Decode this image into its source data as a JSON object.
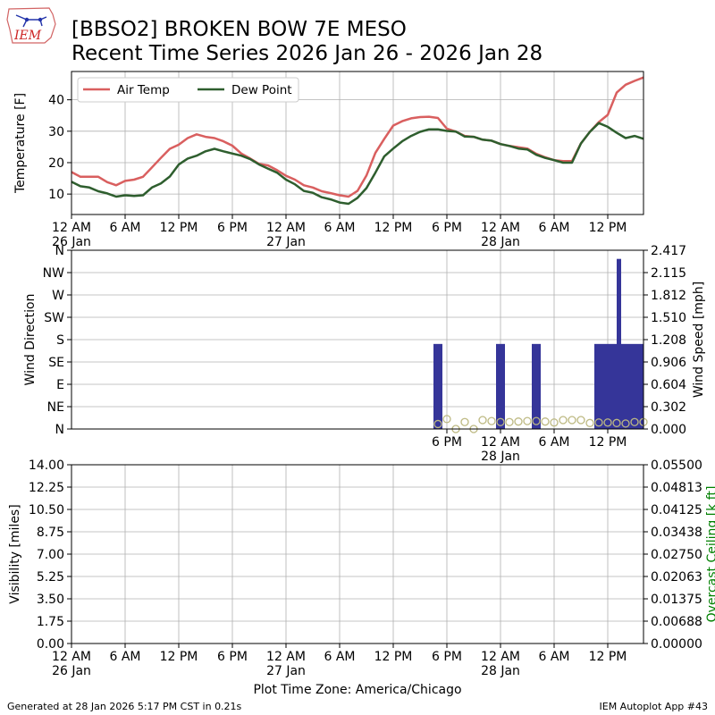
{
  "header": {
    "logo_text": "IEM",
    "title_line1": "[BBSO2] BROKEN BOW 7E MESO",
    "title_line2": "Recent Time Series 2026 Jan 26 - 2026 Jan 28"
  },
  "footer": {
    "generated": "Generated at 28 Jan 2026 5:17 PM CST in 0.21s",
    "app": "IEM Autoplot App #43"
  },
  "colors": {
    "air_temp": "#d95f5f",
    "dew_point": "#2e5e2e",
    "wind_speed_bars": "#353599",
    "wind_dir_points": "#bdb982",
    "ceiling_label": "#008000",
    "grid": "#b0b0b0"
  },
  "chart_data": [
    {
      "type": "line",
      "ylabel": "Temperature [F]",
      "ylim": [
        3.5,
        49
      ],
      "yticks": [
        10,
        20,
        30,
        40
      ],
      "xlim": [
        0,
        64
      ],
      "x_unit": "hours since 12 AM 26 Jan",
      "xticks": [
        {
          "x": 0,
          "label": "12 AM",
          "sub": "26 Jan"
        },
        {
          "x": 6,
          "label": "6 AM",
          "sub": ""
        },
        {
          "x": 12,
          "label": "12 PM",
          "sub": ""
        },
        {
          "x": 18,
          "label": "6 PM",
          "sub": ""
        },
        {
          "x": 24,
          "label": "12 AM",
          "sub": "27 Jan"
        },
        {
          "x": 30,
          "label": "6 AM",
          "sub": ""
        },
        {
          "x": 36,
          "label": "12 PM",
          "sub": ""
        },
        {
          "x": 42,
          "label": "6 PM",
          "sub": ""
        },
        {
          "x": 48,
          "label": "12 AM",
          "sub": "28 Jan"
        },
        {
          "x": 54,
          "label": "6 AM",
          "sub": ""
        },
        {
          "x": 60,
          "label": "12 PM",
          "sub": ""
        }
      ],
      "grid": true,
      "legend": "top-left",
      "series": [
        {
          "name": "Air Temp",
          "color": "#d95f5f",
          "points": [
            [
              0,
              17
            ],
            [
              1,
              15.5
            ],
            [
              2,
              15.5
            ],
            [
              3,
              15.5
            ],
            [
              4,
              13.8
            ],
            [
              5,
              12.8
            ],
            [
              6,
              14.2
            ],
            [
              7,
              14.6
            ],
            [
              8,
              15.5
            ],
            [
              9,
              18.5
            ],
            [
              10,
              21.5
            ],
            [
              11,
              24.4
            ],
            [
              12,
              25.7
            ],
            [
              13,
              27.8
            ],
            [
              14,
              29
            ],
            [
              15,
              28.2
            ],
            [
              16,
              27.8
            ],
            [
              17,
              26.8
            ],
            [
              18,
              25.4
            ],
            [
              19,
              22.9
            ],
            [
              20,
              21.3
            ],
            [
              21,
              19.6
            ],
            [
              22,
              19.1
            ],
            [
              23,
              17.6
            ],
            [
              24,
              15.8
            ],
            [
              25,
              14.6
            ],
            [
              26,
              12.8
            ],
            [
              27,
              12.1
            ],
            [
              28,
              10.9
            ],
            [
              29,
              10.3
            ],
            [
              30,
              9.6
            ],
            [
              31,
              9.2
            ],
            [
              32,
              11
            ],
            [
              33,
              15.9
            ],
            [
              34,
              23.1
            ],
            [
              35,
              27.6
            ],
            [
              36,
              31.8
            ],
            [
              37,
              33.2
            ],
            [
              38,
              34.1
            ],
            [
              39,
              34.5
            ],
            [
              40,
              34.6
            ],
            [
              41,
              34.2
            ],
            [
              42,
              30.8
            ],
            [
              43,
              29.9
            ],
            [
              44,
              28.5
            ],
            [
              45,
              28.2
            ],
            [
              46,
              27.3
            ],
            [
              47,
              27
            ],
            [
              48,
              25.9
            ],
            [
              49,
              25.3
            ],
            [
              50,
              24.9
            ],
            [
              51,
              24.5
            ],
            [
              52,
              22.8
            ],
            [
              53,
              21.7
            ],
            [
              54,
              20.8
            ],
            [
              55,
              20.5
            ],
            [
              56,
              20.5
            ],
            [
              57,
              26.1
            ],
            [
              58,
              29.8
            ],
            [
              59,
              32.9
            ],
            [
              60,
              35.2
            ],
            [
              61,
              42.3
            ],
            [
              62,
              44.8
            ],
            [
              63,
              46
            ],
            [
              64,
              47.1
            ]
          ]
        },
        {
          "name": "Dew Point",
          "color": "#2e5e2e",
          "points": [
            [
              0,
              13.9
            ],
            [
              1,
              12.5
            ],
            [
              2,
              12.1
            ],
            [
              3,
              10.9
            ],
            [
              4,
              10.2
            ],
            [
              5,
              9.2
            ],
            [
              6,
              9.6
            ],
            [
              7,
              9.4
            ],
            [
              8,
              9.6
            ],
            [
              9,
              12.1
            ],
            [
              10,
              13.4
            ],
            [
              11,
              15.6
            ],
            [
              12,
              19.4
            ],
            [
              13,
              21.3
            ],
            [
              14,
              22.2
            ],
            [
              15,
              23.6
            ],
            [
              16,
              24.4
            ],
            [
              17,
              23.6
            ],
            [
              18,
              22.9
            ],
            [
              19,
              22.2
            ],
            [
              20,
              21.1
            ],
            [
              21,
              19.4
            ],
            [
              22,
              18.1
            ],
            [
              23,
              16.8
            ],
            [
              24,
              14.6
            ],
            [
              25,
              13.1
            ],
            [
              26,
              11
            ],
            [
              27,
              10.4
            ],
            [
              28,
              9
            ],
            [
              29,
              8.3
            ],
            [
              30,
              7.3
            ],
            [
              31,
              6.9
            ],
            [
              32,
              8.8
            ],
            [
              33,
              11.9
            ],
            [
              34,
              16.8
            ],
            [
              35,
              22
            ],
            [
              36,
              24.5
            ],
            [
              37,
              26.8
            ],
            [
              38,
              28.5
            ],
            [
              39,
              29.8
            ],
            [
              40,
              30.6
            ],
            [
              41,
              30.6
            ],
            [
              42,
              30.1
            ],
            [
              43,
              29.9
            ],
            [
              44,
              28.3
            ],
            [
              45,
              28.2
            ],
            [
              46,
              27.3
            ],
            [
              47,
              27
            ],
            [
              48,
              25.9
            ],
            [
              49,
              25.3
            ],
            [
              50,
              24.5
            ],
            [
              51,
              24.2
            ],
            [
              52,
              22.5
            ],
            [
              53,
              21.5
            ],
            [
              54,
              20.8
            ],
            [
              55,
              20
            ],
            [
              56,
              20
            ],
            [
              57,
              26.1
            ],
            [
              58,
              29.8
            ],
            [
              59,
              32.6
            ],
            [
              60,
              31.4
            ],
            [
              61,
              29.5
            ],
            [
              62,
              27.8
            ],
            [
              63,
              28.5
            ],
            [
              64,
              27.6
            ]
          ]
        }
      ]
    },
    {
      "type": "bar",
      "ylabel_left": "Wind Direction",
      "ylabel_right": "Wind Speed [mph]",
      "dir_ticks": [
        "N",
        "NE",
        "E",
        "SE",
        "S",
        "SW",
        "W",
        "NW",
        "N"
      ],
      "speed_ticks": [
        "0.000",
        "0.302",
        "0.604",
        "0.906",
        "1.208",
        "1.510",
        "1.812",
        "2.115",
        "2.417"
      ],
      "speed_ylim": [
        0,
        2.417
      ],
      "dir_ylim": [
        0,
        360
      ],
      "xlim": [
        0,
        64
      ],
      "x_unit": "hours since 12 AM 26 Jan",
      "xticks": [
        {
          "x": 42,
          "label": "6 PM",
          "sub": ""
        },
        {
          "x": 48,
          "label": "12 AM",
          "sub": "28 Jan"
        },
        {
          "x": 54,
          "label": "6 AM",
          "sub": ""
        },
        {
          "x": 60,
          "label": "12 PM",
          "sub": ""
        }
      ],
      "grid": true,
      "wind_speed_bars": [
        {
          "x": 40.5,
          "width": 1,
          "value": 1.15
        },
        {
          "x": 47.5,
          "width": 1,
          "value": 1.15
        },
        {
          "x": 51.5,
          "width": 1,
          "value": 1.15
        },
        {
          "x": 58.5,
          "width": 2,
          "value": 1.15
        },
        {
          "x": 60.5,
          "width": 0.5,
          "value": 1.15
        },
        {
          "x": 61,
          "width": 0.5,
          "value": 2.3
        },
        {
          "x": 61.5,
          "width": 2.5,
          "value": 1.15
        }
      ],
      "wind_direction_points": [
        [
          41,
          10
        ],
        [
          42,
          20
        ],
        [
          43,
          0
        ],
        [
          44,
          14
        ],
        [
          45,
          0
        ],
        [
          46,
          18
        ],
        [
          47,
          16
        ],
        [
          48,
          14
        ],
        [
          49,
          14
        ],
        [
          50,
          15
        ],
        [
          51,
          16
        ],
        [
          52,
          16
        ],
        [
          53,
          15
        ],
        [
          54,
          13
        ],
        [
          55,
          18
        ],
        [
          56,
          18
        ],
        [
          57,
          18
        ],
        [
          58,
          12
        ],
        [
          59,
          13
        ],
        [
          60,
          13
        ],
        [
          61,
          12
        ],
        [
          62,
          11
        ],
        [
          63,
          14
        ],
        [
          64,
          14
        ]
      ]
    },
    {
      "type": "line",
      "ylabel_left": "Visibility [miles]",
      "ylabel_right": "Overcast Ceiling [k ft]",
      "vis_ticks": [
        "0.00",
        "1.75",
        "3.50",
        "5.25",
        "7.00",
        "8.75",
        "10.50",
        "12.25",
        "14.00"
      ],
      "ceiling_ticks": [
        "0.00000",
        "0.00688",
        "0.01375",
        "0.02063",
        "0.02750",
        "0.03438",
        "0.04125",
        "0.04813",
        "0.05500"
      ],
      "ylim": [
        0,
        14
      ],
      "xlim": [
        0,
        64
      ],
      "x_unit": "hours since 12 AM 26 Jan",
      "xticks": [
        {
          "x": 0,
          "label": "12 AM",
          "sub": "26 Jan"
        },
        {
          "x": 6,
          "label": "6 AM",
          "sub": ""
        },
        {
          "x": 12,
          "label": "12 PM",
          "sub": ""
        },
        {
          "x": 18,
          "label": "6 PM",
          "sub": ""
        },
        {
          "x": 24,
          "label": "12 AM",
          "sub": "27 Jan"
        },
        {
          "x": 30,
          "label": "6 AM",
          "sub": ""
        },
        {
          "x": 36,
          "label": "12 PM",
          "sub": ""
        },
        {
          "x": 42,
          "label": "6 PM",
          "sub": ""
        },
        {
          "x": 48,
          "label": "12 AM",
          "sub": "28 Jan"
        },
        {
          "x": 54,
          "label": "6 AM",
          "sub": ""
        },
        {
          "x": 60,
          "label": "12 PM",
          "sub": ""
        }
      ],
      "xlabel": "Plot Time Zone: America/Chicago",
      "grid": true,
      "series": []
    }
  ]
}
